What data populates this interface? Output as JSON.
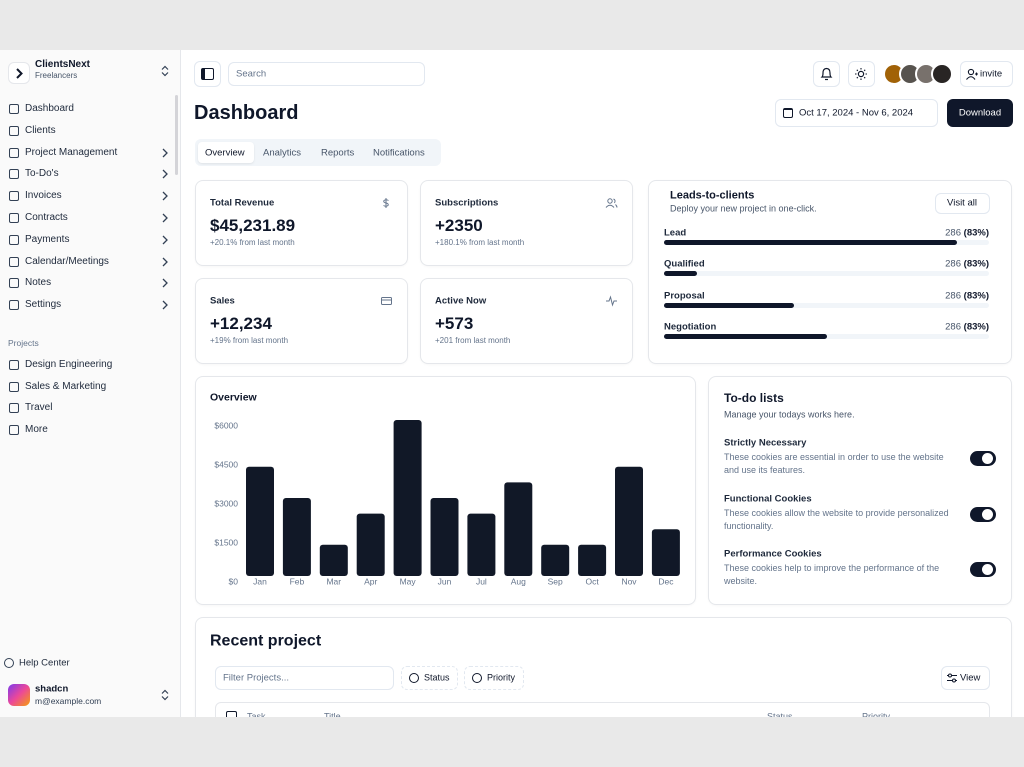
{
  "sidebar": {
    "workspace": {
      "name": "ClientsNext",
      "subtitle": "Freelancers"
    },
    "nav": [
      "Dashboard",
      "Clients",
      "Project Management",
      "To-Do's",
      "Invoices",
      "Contracts",
      "Payments",
      "Calendar/Meetings",
      "Notes",
      "Settings"
    ],
    "projects_heading": "Projects",
    "projects": [
      "Design Engineering",
      "Sales & Marketing",
      "Travel",
      "More"
    ],
    "help": "Help Center",
    "user": {
      "name": "shadcn",
      "email": "m@example.com"
    }
  },
  "topbar": {
    "search_placeholder": "Search",
    "invite": "invite"
  },
  "header": {
    "title": "Dashboard",
    "date_range": "Oct 17, 2024 - Nov 6, 2024",
    "download": "Download"
  },
  "tabs": {
    "items": [
      "Overview",
      "Analytics",
      "Reports",
      "Notifications"
    ],
    "active": 0
  },
  "stats": [
    {
      "label": "Total Revenue",
      "value": "$45,231.89",
      "change": "+20.1% from last month"
    },
    {
      "label": "Subscriptions",
      "value": "+2350",
      "change": "+180.1% from last month"
    },
    {
      "label": "Sales",
      "value": "+12,234",
      "change": "+19% from last month"
    },
    {
      "label": "Active Now",
      "value": "+573",
      "change": "+201 from last month"
    }
  ],
  "leads": {
    "title": "Leads-to-clients",
    "subtitle": "Deploy your new project in one-click.",
    "button": "Visit all",
    "stages": [
      {
        "name": "Lead",
        "count": "286",
        "percent": "(83%)",
        "progress": 90
      },
      {
        "name": "Qualified",
        "count": "286",
        "percent": "(83%)",
        "progress": 10
      },
      {
        "name": "Proposal",
        "count": "286",
        "percent": "(83%)",
        "progress": 40
      },
      {
        "name": "Negotiation",
        "count": "286",
        "percent": "(83%)",
        "progress": 50
      }
    ]
  },
  "chart_data": {
    "type": "bar",
    "title": "Overview",
    "categories": [
      "Jan",
      "Feb",
      "Mar",
      "Apr",
      "May",
      "Jun",
      "Jul",
      "Aug",
      "Sep",
      "Oct",
      "Nov",
      "Dec"
    ],
    "values": [
      4200,
      3000,
      1200,
      2400,
      6000,
      3000,
      2400,
      3600,
      1200,
      1200,
      4200,
      1800
    ],
    "color": "#111827",
    "ylim": [
      0,
      6000
    ],
    "yticks": [
      {
        "value": 0,
        "label": "$0"
      },
      {
        "value": 1500,
        "label": "$1500"
      },
      {
        "value": 3000,
        "label": "$3000"
      },
      {
        "value": 4500,
        "label": "$4500"
      },
      {
        "value": 6000,
        "label": "$6000"
      }
    ]
  },
  "todo": {
    "title": "To-do lists",
    "subtitle": "Manage your todays works here.",
    "items": [
      {
        "title": "Strictly Necessary",
        "description": "These cookies are essential in order to use the website and use its features.",
        "enabled": true
      },
      {
        "title": "Functional Cookies",
        "description": "These cookies allow the website to provide personalized functionality.",
        "enabled": true
      },
      {
        "title": "Performance Cookies",
        "description": "These cookies help to improve the performance of the website.",
        "enabled": true
      }
    ]
  },
  "recent": {
    "title": "Recent project",
    "filter_placeholder": "Filter Projects...",
    "filters": [
      "Status",
      "Priority"
    ],
    "view": "View",
    "columns": [
      "Task",
      "Title",
      "Status",
      "Priority"
    ]
  }
}
